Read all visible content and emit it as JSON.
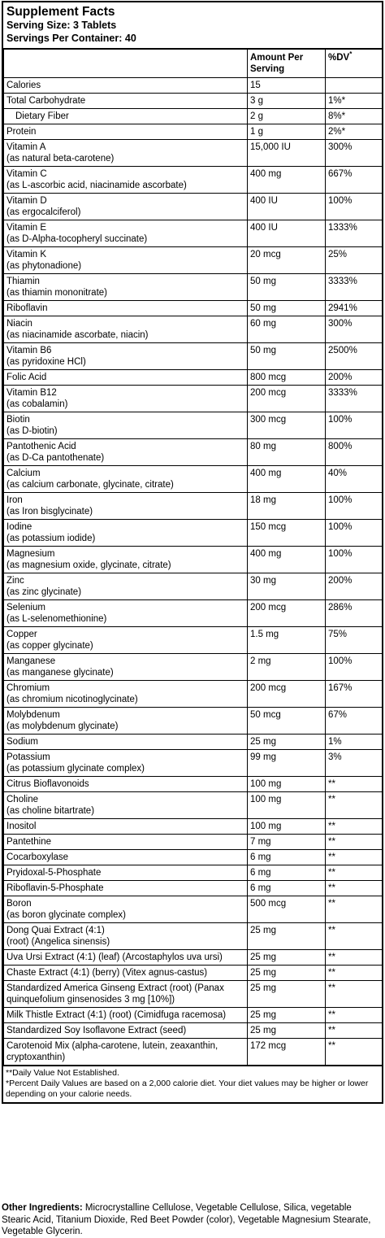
{
  "header": {
    "title": "Supplement Facts",
    "serving_size": "Serving Size: 3 Tablets",
    "servings_per_container": "Servings Per Container: 40"
  },
  "columns": {
    "amount": "Amount Per Serving",
    "dv": "%DV",
    "dv_mark": "*"
  },
  "rows": [
    {
      "name": "Calories",
      "amount": "15",
      "dv": ""
    },
    {
      "name": "Total Carbohydrate",
      "amount": "3 g",
      "dv": "1%*"
    },
    {
      "name": "Dietary Fiber",
      "amount": "2 g",
      "dv": "8%*",
      "indent": true
    },
    {
      "name": "Protein",
      "amount": "1 g",
      "dv": "2%*"
    },
    {
      "name": "Vitamin A\n(as natural beta-carotene)",
      "amount": "15,000 IU",
      "dv": "300%"
    },
    {
      "name": "Vitamin C\n(as L-ascorbic acid, niacinamide ascorbate)",
      "amount": "400 mg",
      "dv": "667%"
    },
    {
      "name": "Vitamin D\n(as ergocalciferol)",
      "amount": "400 IU",
      "dv": "100%"
    },
    {
      "name": "Vitamin E\n(as D-Alpha-tocopheryl succinate)",
      "amount": "400 IU",
      "dv": "1333%"
    },
    {
      "name": "Vitamin K\n(as phytonadione)",
      "amount": "20 mcg",
      "dv": "25%"
    },
    {
      "name": "Thiamin\n(as thiamin mononitrate)",
      "amount": "50 mg",
      "dv": "3333%"
    },
    {
      "name": "Riboflavin",
      "amount": "50 mg",
      "dv": "2941%"
    },
    {
      "name": "Niacin\n(as niacinamide ascorbate, niacin)",
      "amount": "60 mg",
      "dv": "300%"
    },
    {
      "name": "Vitamin B6\n(as pyridoxine HCl)",
      "amount": "50 mg",
      "dv": "2500%"
    },
    {
      "name": "Folic Acid",
      "amount": "800 mcg",
      "dv": "200%"
    },
    {
      "name": "Vitamin B12\n(as cobalamin)",
      "amount": "200 mcg",
      "dv": "3333%"
    },
    {
      "name": "Biotin\n(as D-biotin)",
      "amount": "300 mcg",
      "dv": "100%"
    },
    {
      "name": "Pantothenic Acid\n(as D-Ca pantothenate)",
      "amount": "80 mg",
      "dv": "800%"
    },
    {
      "name": "Calcium\n(as calcium carbonate, glycinate, citrate)",
      "amount": "400 mg",
      "dv": "40%"
    },
    {
      "name": "Iron\n(as Iron bisglycinate)",
      "amount": "18 mg",
      "dv": "100%"
    },
    {
      "name": "Iodine\n(as potassium iodide)",
      "amount": "150 mcg",
      "dv": "100%"
    },
    {
      "name": "Magnesium\n(as magnesium oxide, glycinate, citrate)",
      "amount": "400 mg",
      "dv": "100%"
    },
    {
      "name": "Zinc\n(as zinc glycinate)",
      "amount": "30 mg",
      "dv": "200%"
    },
    {
      "name": "Selenium\n(as L-selenomethionine)",
      "amount": "200 mcg",
      "dv": "286%"
    },
    {
      "name": "Copper\n(as copper glycinate)",
      "amount": "1.5 mg",
      "dv": "75%"
    },
    {
      "name": "Manganese\n(as manganese glycinate)",
      "amount": "2 mg",
      "dv": "100%"
    },
    {
      "name": "Chromium\n(as chromium nicotinoglycinate)",
      "amount": "200 mcg",
      "dv": "167%"
    },
    {
      "name": "Molybdenum\n(as molybdenum glycinate)",
      "amount": "50 mcg",
      "dv": "67%"
    },
    {
      "name": "Sodium",
      "amount": "25 mg",
      "dv": "1%"
    },
    {
      "name": "Potassium\n(as potassium glycinate complex)",
      "amount": "99 mg",
      "dv": "3%"
    },
    {
      "name": "Citrus Bioflavonoids",
      "amount": "100 mg",
      "dv": "**"
    },
    {
      "name": "Choline\n(as choline bitartrate)",
      "amount": "100 mg",
      "dv": "**"
    },
    {
      "name": "Inositol",
      "amount": "100 mg",
      "dv": "**"
    },
    {
      "name": "Pantethine",
      "amount": "7 mg",
      "dv": "**"
    },
    {
      "name": "Cocarboxylase",
      "amount": "6 mg",
      "dv": "**"
    },
    {
      "name": "Pryidoxal-5-Phosphate",
      "amount": "6 mg",
      "dv": "**"
    },
    {
      "name": "Riboflavin-5-Phosphate",
      "amount": "6 mg",
      "dv": "**"
    },
    {
      "name": "Boron\n(as boron glycinate complex)",
      "amount": "500 mcg",
      "dv": "**"
    },
    {
      "name": "Dong Quai Extract (4:1)\n(root) (Angelica sinensis)",
      "amount": "25 mg",
      "dv": "**"
    },
    {
      "name": "Uva Ursi Extract (4:1) (leaf) (Arcostaphylos uva ursi)",
      "amount": "25 mg",
      "dv": "**"
    },
    {
      "name": "Chaste Extract (4:1) (berry) (Vitex agnus-castus)",
      "amount": "25 mg",
      "dv": "**"
    },
    {
      "name": "Standardized America Ginseng Extract (root) (Panax\nquinquefolium ginsenosides 3 mg [10%])",
      "amount": "25 mg",
      "dv": "**"
    },
    {
      "name": "Milk Thistle Extract (4:1) (root) (Cimidfuga racemosa)",
      "amount": "25 mg",
      "dv": "**"
    },
    {
      "name": "Standardized Soy Isoflavone Extract (seed)",
      "amount": "25 mg",
      "dv": "**"
    },
    {
      "name": "Carotenoid Mix (alpha-carotene, lutein, zeaxanthin,\ncryptoxanthin)",
      "amount": "172 mcg",
      "dv": "**"
    }
  ],
  "notes": {
    "dv_not_established": "**Daily Value Not Established.",
    "percent_dv": "*Percent Daily Values are based on a 2,000 calorie diet. Your diet values may be higher or lower depending on your calorie needs."
  },
  "other_ingredients": {
    "label": "Other Ingredients:",
    "text": " Microcrystalline Cellulose, Vegetable Cellulose, Silica, vegetable Stearic Acid, Titanium Dioxide, Red Beet Powder (color), Vegetable Magnesium Stearate, Vegetable Glycerin."
  }
}
